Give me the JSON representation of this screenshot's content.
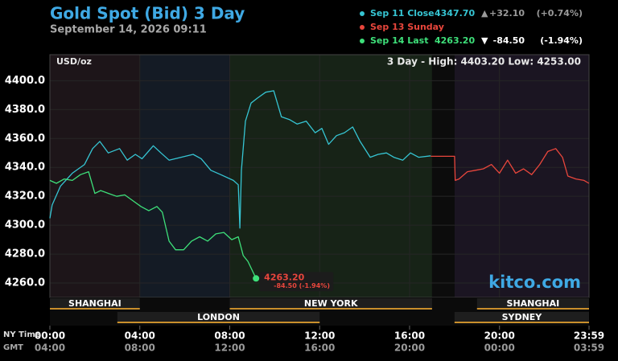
{
  "chart_data": {
    "type": "line",
    "title": "Gold Spot (Bid) 3 Day",
    "subtitle": "September 14, 2026 09:11",
    "unit_label": "USD/oz",
    "range_label": "3 Day - High: 4403.20  Low: 4253.00",
    "watermark": "kitco.com",
    "x_row_label": "NY Time",
    "x2_row_label": "GMT",
    "xlim": [
      0,
      23.983
    ],
    "ylim": [
      4250,
      4418
    ],
    "grid": true,
    "yticks": [
      {
        "value": 4260,
        "label": "4260.0"
      },
      {
        "value": 4280,
        "label": "4280.0"
      },
      {
        "value": 4300,
        "label": "4300.0"
      },
      {
        "value": 4320,
        "label": "4320.0"
      },
      {
        "value": 4340,
        "label": "4340.0"
      },
      {
        "value": 4360,
        "label": "4360.0"
      },
      {
        "value": 4380,
        "label": "4380.0"
      },
      {
        "value": 4400,
        "label": "4400.0"
      }
    ],
    "xticks": [
      {
        "value": 0,
        "label": "00:00"
      },
      {
        "value": 4,
        "label": "04:00"
      },
      {
        "value": 8,
        "label": "08:00"
      },
      {
        "value": 12,
        "label": "12:00"
      },
      {
        "value": 16,
        "label": "16:00"
      },
      {
        "value": 20,
        "label": "20:00"
      },
      {
        "value": 23.983,
        "label": "23:59"
      }
    ],
    "x2ticks": [
      {
        "value": 0,
        "label": "04:00"
      },
      {
        "value": 4,
        "label": "08:00"
      },
      {
        "value": 8,
        "label": "12:00"
      },
      {
        "value": 12,
        "label": "16:00"
      },
      {
        "value": 16,
        "label": "20:00"
      },
      {
        "value": 20,
        "label": "00:00"
      },
      {
        "value": 23.983,
        "label": "03:59"
      }
    ],
    "zones": [
      {
        "start": 0,
        "end": 4,
        "color": "#1d1519"
      },
      {
        "start": 4,
        "end": 8,
        "color": "#141b25"
      },
      {
        "start": 8,
        "end": 17,
        "color": "#172317"
      },
      {
        "start": 17,
        "end": 18,
        "color": "#0c0c0c"
      },
      {
        "start": 18,
        "end": 23.983,
        "color": "#1b1522"
      }
    ],
    "sessions": [
      {
        "name": "SHANGHAI",
        "start": 0,
        "end": 4,
        "row": 0
      },
      {
        "name": "LONDON",
        "start": 3,
        "end": 12,
        "row": 1
      },
      {
        "name": "NEW YORK",
        "start": 8,
        "end": 17,
        "row": 0
      },
      {
        "name": "SHANGHAI",
        "start": 19,
        "end": 23.983,
        "row": 0
      },
      {
        "name": "SYDNEY",
        "start": 18,
        "end": 23.983,
        "row": 1
      }
    ],
    "series": [
      {
        "name": "Sep 11 Close",
        "color": "#36c5d3",
        "legend_value": "4347.70",
        "legend_arrow": "▲",
        "legend_change": "+32.10",
        "legend_pct": "(+0.74%)",
        "x": [
          0,
          0.1,
          0.47,
          1.0,
          1.54,
          1.9,
          2.22,
          2.6,
          3.1,
          3.44,
          3.8,
          4.1,
          4.6,
          4.94,
          5.3,
          5.84,
          6.37,
          6.73,
          7.16,
          7.6,
          8.16,
          8.38,
          8.45,
          8.52,
          8.7,
          8.95,
          9.24,
          9.6,
          9.96,
          10.3,
          10.67,
          11.0,
          11.4,
          11.8,
          12.1,
          12.4,
          12.75,
          13.1,
          13.47,
          13.8,
          14.25,
          14.6,
          14.97,
          15.3,
          15.7,
          16.04,
          16.4,
          16.94
        ],
        "values": [
          4304.8,
          4314,
          4327,
          4336,
          4342,
          4353,
          4358,
          4350,
          4353,
          4345,
          4349,
          4346,
          4355,
          4350,
          4345,
          4347,
          4349,
          4346,
          4338,
          4335,
          4331,
          4328,
          4298,
          4338,
          4372,
          4384.5,
          4388,
          4392,
          4393,
          4375,
          4373,
          4370,
          4372,
          4364,
          4367,
          4356,
          4362,
          4364,
          4368,
          4358,
          4347,
          4349,
          4350,
          4347,
          4345,
          4350,
          4347,
          4348
        ]
      },
      {
        "name": "Sep 13 Sunday",
        "color": "#e8463c",
        "x": [
          16.94,
          18.0,
          18.03,
          18.2,
          18.57,
          18.93,
          19.28,
          19.64,
          20.0,
          20.36,
          20.72,
          21.07,
          21.43,
          21.79,
          22.15,
          22.5,
          22.8,
          23.04,
          23.4,
          23.76,
          23.98
        ],
        "values": [
          4347.7,
          4347.7,
          4331,
          4332,
          4337,
          4338,
          4339,
          4342,
          4336,
          4345,
          4336,
          4339,
          4335,
          4342,
          4351,
          4353,
          4347,
          4334,
          4332,
          4331,
          4329
        ]
      },
      {
        "name": "Sep 14 Last",
        "color": "#3ee07a",
        "legend_value": "4263.20",
        "legend_arrow": "▼",
        "legend_change": "-84.50",
        "legend_pct": "(-1.94%)",
        "x": [
          0,
          0.29,
          0.64,
          1.0,
          1.36,
          1.72,
          2.0,
          2.26,
          2.61,
          2.97,
          3.33,
          3.69,
          4.05,
          4.4,
          4.76,
          5.0,
          5.3,
          5.59,
          5.95,
          6.3,
          6.66,
          7.02,
          7.38,
          7.74,
          8.09,
          8.38,
          8.6,
          8.81,
          9.17
        ],
        "values": [
          4331,
          4329,
          4332,
          4331,
          4335,
          4337,
          4322,
          4324,
          4322,
          4320,
          4321,
          4317,
          4313,
          4310,
          4313,
          4309,
          4289,
          4283,
          4283,
          4289,
          4292,
          4289,
          4294,
          4295,
          4290,
          4292,
          4279,
          4275,
          4263.2
        ]
      }
    ],
    "end_annotation": {
      "label": "4263.20",
      "sublabel": "-84.50 (-1.94%)"
    }
  }
}
